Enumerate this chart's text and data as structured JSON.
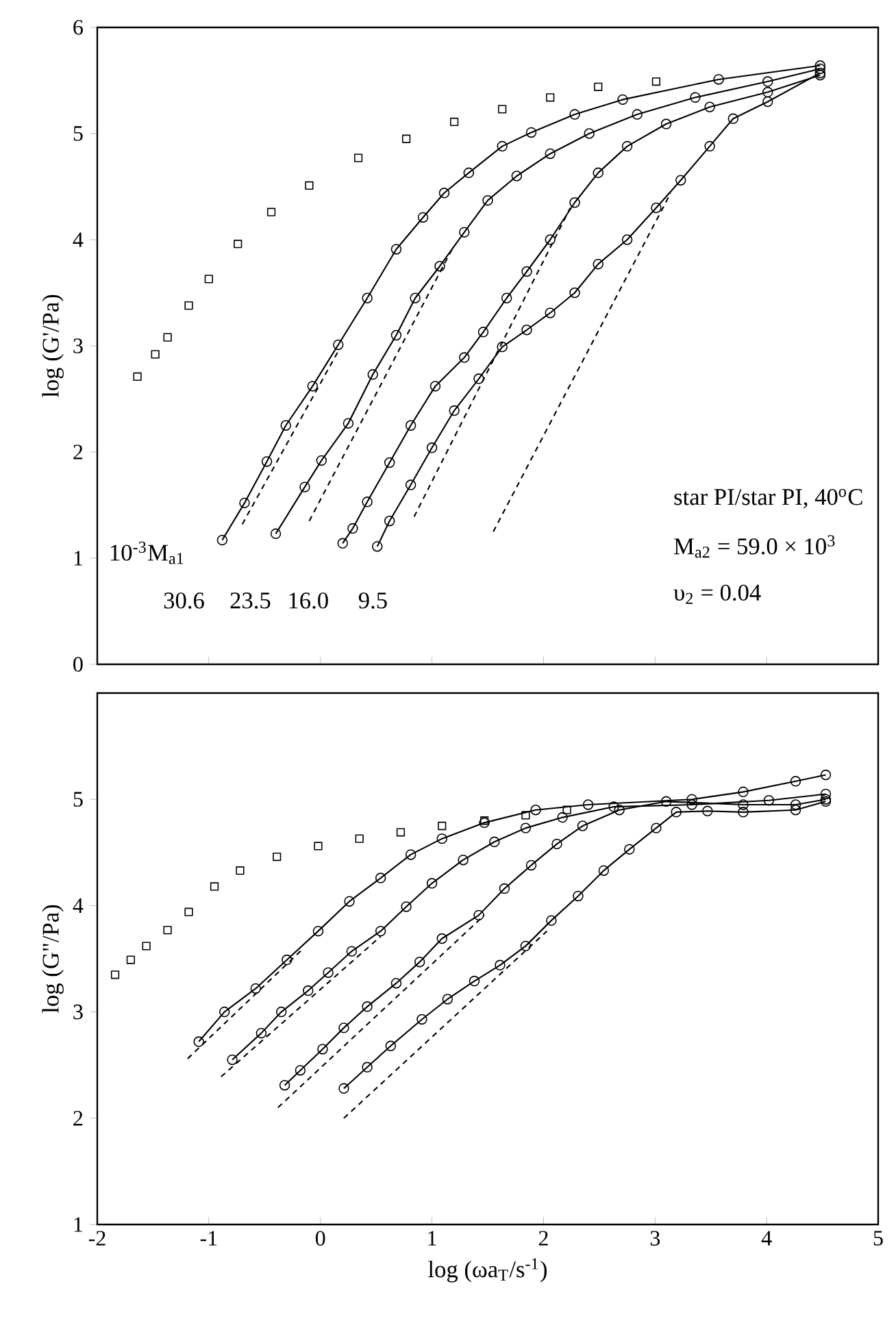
{
  "chart_data": [
    {
      "type": "line",
      "ylabel": "log (G'/Pa)",
      "xlim": [
        -2,
        5
      ],
      "xticks": [
        -2,
        -1,
        0,
        1,
        2,
        3,
        4,
        5
      ],
      "ylim": [
        0,
        6
      ],
      "yticks": [
        0,
        1,
        2,
        3,
        4,
        5,
        6
      ],
      "tick_labels": "y",
      "annotations": [
        "10$^{-3}$M$_{a1}$",
        "star PI/star PI, 40$^{o}$C",
        "M$_{a2}$ = 59.0 × 10$^{3}$",
        "υ$_{2}$ = 0.04",
        "30.6",
        "23.5",
        "16.0",
        "9.5"
      ],
      "series": [
        {
          "type": "scatter",
          "marker": "square",
          "color": "#000000",
          "x": [
            -1.64,
            -1.48,
            -1.37,
            -1.18,
            -1.0,
            -0.74,
            -0.44,
            -0.1,
            0.34,
            0.77,
            1.2,
            1.63,
            2.06,
            2.49,
            3.01
          ],
          "values": [
            2.71,
            2.92,
            3.08,
            3.38,
            3.63,
            3.96,
            4.26,
            4.51,
            4.77,
            4.95,
            5.11,
            5.23,
            5.34,
            5.44,
            5.49
          ]
        },
        {
          "type": "line",
          "marker": "circle",
          "line_style": "solid",
          "color": "#000000",
          "x": [
            -0.88,
            -0.68,
            -0.48,
            -0.31,
            -0.07,
            0.16,
            0.42,
            0.68,
            0.92,
            1.11,
            1.33,
            1.63,
            1.89,
            2.28,
            2.71,
            3.57,
            4.48
          ],
          "values": [
            1.17,
            1.52,
            1.91,
            2.25,
            2.62,
            3.01,
            3.45,
            3.91,
            4.21,
            4.44,
            4.63,
            4.88,
            5.01,
            5.18,
            5.32,
            5.51,
            5.64
          ]
        },
        {
          "type": "line",
          "marker": "none",
          "line_style": "dashed",
          "color": "#000000",
          "x": [
            -0.7,
            0.16
          ],
          "values": [
            1.32,
            2.95
          ]
        },
        {
          "type": "line",
          "marker": "circle",
          "line_style": "solid",
          "color": "#000000",
          "x": [
            -0.4,
            -0.14,
            0.01,
            0.25,
            0.47,
            0.68,
            0.85,
            1.07,
            1.29,
            1.5,
            1.76,
            2.06,
            2.41,
            2.84,
            3.36,
            4.01,
            4.48
          ],
          "values": [
            1.23,
            1.67,
            1.92,
            2.27,
            2.73,
            3.1,
            3.45,
            3.75,
            4.07,
            4.37,
            4.6,
            4.81,
            5.0,
            5.18,
            5.34,
            5.49,
            5.61
          ]
        },
        {
          "type": "line",
          "marker": "none",
          "line_style": "dashed",
          "color": "#000000",
          "x": [
            -0.1,
            1.18
          ],
          "values": [
            1.35,
            3.91
          ]
        },
        {
          "type": "line",
          "marker": "circle",
          "line_style": "solid",
          "color": "#000000",
          "x": [
            0.2,
            0.29,
            0.42,
            0.62,
            0.81,
            1.03,
            1.29,
            1.46,
            1.67,
            1.85,
            2.06,
            2.28,
            2.49,
            2.75,
            3.1,
            3.49,
            4.01,
            4.48
          ],
          "values": [
            1.14,
            1.28,
            1.53,
            1.9,
            2.25,
            2.62,
            2.89,
            3.13,
            3.45,
            3.7,
            4.0,
            4.35,
            4.63,
            4.88,
            5.09,
            5.25,
            5.39,
            5.55
          ]
        },
        {
          "type": "line",
          "marker": "none",
          "line_style": "dashed",
          "color": "#000000",
          "x": [
            0.84,
            2.24
          ],
          "values": [
            1.39,
            4.3
          ]
        },
        {
          "type": "line",
          "marker": "circle",
          "line_style": "solid",
          "color": "#000000",
          "x": [
            0.51,
            0.62,
            0.81,
            1.0,
            1.2,
            1.42,
            1.63,
            1.85,
            2.06,
            2.28,
            2.49,
            2.75,
            3.01,
            3.23,
            3.49,
            3.7,
            4.01,
            4.48
          ],
          "values": [
            1.11,
            1.35,
            1.69,
            2.04,
            2.39,
            2.69,
            2.99,
            3.15,
            3.31,
            3.5,
            3.77,
            4.0,
            4.3,
            4.56,
            4.88,
            5.14,
            5.3,
            5.57
          ]
        },
        {
          "type": "line",
          "marker": "none",
          "line_style": "dashed",
          "color": "#000000",
          "x": [
            1.55,
            3.14
          ],
          "values": [
            1.25,
            4.44
          ]
        }
      ]
    },
    {
      "type": "line",
      "ylabel": "log (G\"/Pa)",
      "xlabel": "log (ωa$_{T}$/s$^{-1}$)",
      "xlim": [
        -2,
        5
      ],
      "xticks": [
        -2,
        -1,
        0,
        1,
        2,
        3,
        4,
        5
      ],
      "ylim": [
        1,
        6
      ],
      "yticks": [
        1,
        2,
        3,
        4,
        5
      ],
      "series": [
        {
          "type": "scatter",
          "marker": "square",
          "color": "#000000",
          "x": [
            -1.84,
            -1.7,
            -1.56,
            -1.37,
            -1.18,
            -0.95,
            -0.72,
            -0.39,
            -0.02,
            0.35,
            0.72,
            1.09,
            1.47,
            1.84,
            2.21
          ],
          "values": [
            3.35,
            3.49,
            3.62,
            3.77,
            3.94,
            4.18,
            4.33,
            4.46,
            4.56,
            4.63,
            4.69,
            4.75,
            4.8,
            4.85,
            4.9
          ]
        },
        {
          "type": "line",
          "marker": "circle",
          "line_style": "solid",
          "color": "#000000",
          "x": [
            -1.09,
            -0.86,
            -0.58,
            -0.3,
            -0.02,
            0.26,
            0.54,
            0.81,
            1.09,
            1.47,
            1.93,
            2.4,
            3.33,
            3.79,
            4.26,
            4.53
          ],
          "values": [
            2.72,
            3.0,
            3.22,
            3.49,
            3.76,
            4.04,
            4.26,
            4.48,
            4.63,
            4.78,
            4.9,
            4.95,
            5.0,
            5.07,
            5.17,
            5.23
          ]
        },
        {
          "type": "line",
          "marker": "none",
          "line_style": "dashed",
          "color": "#000000",
          "x": [
            -1.19,
            -0.16
          ],
          "values": [
            2.56,
            3.59
          ]
        },
        {
          "type": "line",
          "marker": "circle",
          "line_style": "solid",
          "color": "#000000",
          "x": [
            -0.79,
            -0.53,
            -0.35,
            -0.11,
            0.07,
            0.28,
            0.54,
            0.77,
            1.0,
            1.28,
            1.56,
            1.84,
            2.17,
            2.63,
            3.33,
            4.02,
            4.53
          ],
          "values": [
            2.55,
            2.8,
            3.0,
            3.2,
            3.37,
            3.57,
            3.76,
            3.99,
            4.21,
            4.43,
            4.6,
            4.73,
            4.83,
            4.93,
            4.95,
            4.99,
            5.05
          ]
        },
        {
          "type": "line",
          "marker": "none",
          "line_style": "dashed",
          "color": "#000000",
          "x": [
            -0.89,
            0.54
          ],
          "values": [
            2.39,
            3.71
          ]
        },
        {
          "type": "line",
          "marker": "circle",
          "line_style": "solid",
          "color": "#000000",
          "x": [
            -0.32,
            -0.18,
            0.02,
            0.21,
            0.42,
            0.68,
            0.89,
            1.09,
            1.42,
            1.65,
            1.89,
            2.12,
            2.35,
            2.68,
            3.1,
            3.79,
            4.26,
            4.53
          ],
          "values": [
            2.31,
            2.45,
            2.65,
            2.85,
            3.05,
            3.27,
            3.47,
            3.69,
            3.91,
            4.16,
            4.38,
            4.58,
            4.75,
            4.9,
            4.98,
            4.95,
            4.95,
            5.0
          ]
        },
        {
          "type": "line",
          "marker": "none",
          "line_style": "dashed",
          "color": "#000000",
          "x": [
            -0.38,
            1.47
          ],
          "values": [
            2.1,
            3.91
          ]
        },
        {
          "type": "line",
          "marker": "circle",
          "line_style": "solid",
          "color": "#000000",
          "x": [
            0.21,
            0.42,
            0.63,
            0.91,
            1.14,
            1.38,
            1.61,
            1.84,
            2.07,
            2.31,
            2.54,
            2.77,
            3.01,
            3.19,
            3.47,
            3.79,
            4.26,
            4.53
          ],
          "values": [
            2.28,
            2.48,
            2.68,
            2.93,
            3.12,
            3.29,
            3.44,
            3.62,
            3.86,
            4.09,
            4.33,
            4.53,
            4.73,
            4.88,
            4.89,
            4.88,
            4.9,
            4.98
          ]
        },
        {
          "type": "line",
          "marker": "none",
          "line_style": "dashed",
          "color": "#000000",
          "x": [
            0.21,
            2.03
          ],
          "values": [
            2.0,
            3.76
          ]
        }
      ]
    }
  ]
}
